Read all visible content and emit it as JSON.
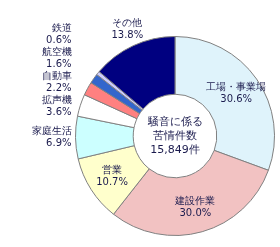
{
  "chart_data": {
    "type": "doughnut",
    "title": [
      "騒音に係る",
      "苦情件数",
      "15,849件"
    ],
    "categories": [
      "工場・事業場",
      "建設作業",
      "営業",
      "家庭生活",
      "拡声機",
      "自動車",
      "航空機",
      "鉄道",
      "その他"
    ],
    "values": [
      30.6,
      30.0,
      10.7,
      6.9,
      3.6,
      2.2,
      1.6,
      0.6,
      13.8
    ],
    "value_labels": [
      "30.6%",
      "30.0%",
      "10.7%",
      "6.9%",
      "3.6%",
      "2.2%",
      "1.6%",
      "0.6%",
      "13.8%"
    ],
    "colors": [
      "#dff3fb",
      "#f2c2c2",
      "#ffffcc",
      "#ccffff",
      "#ffffff",
      "#ff8080",
      "#3366cc",
      "#ccccff",
      "#000080"
    ],
    "data_labels": true
  }
}
